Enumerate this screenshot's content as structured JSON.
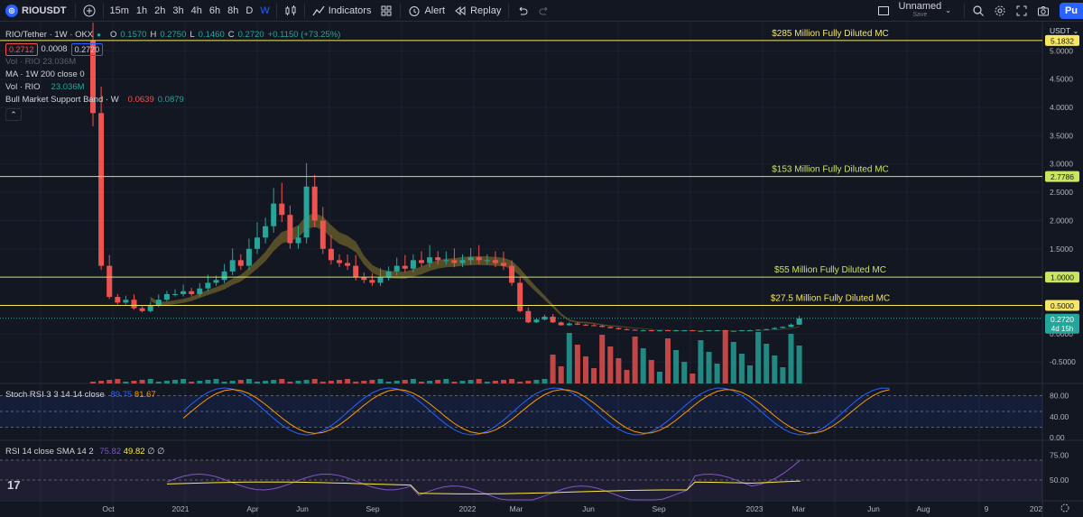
{
  "toolbar": {
    "symbol": "RIOUSDT",
    "intervals": [
      "15m",
      "1h",
      "2h",
      "3h",
      "4h",
      "6h",
      "8h",
      "D",
      "W"
    ],
    "active_interval": "W",
    "indicators_label": "Indicators",
    "alert_label": "Alert",
    "replay_label": "Replay",
    "layout_name": "Unnamed",
    "layout_status": "Save",
    "publish_label": "Pu",
    "accent": "#2962ff"
  },
  "legend": {
    "title": "RIO/Tether · 1W · OKX",
    "ohlc": {
      "o_label": "O",
      "o": "0.1570",
      "h_label": "H",
      "h": "0.2750",
      "l_label": "L",
      "l": "0.1460",
      "c_label": "C",
      "c": "0.2720",
      "chg": "+0.1150 (+73.25%)"
    },
    "bid": "0.2712",
    "spread": "0.0008",
    "ask": "0.2720",
    "vol_hidden": "Vol · RIO   23.036M",
    "ma_label": "MA · 1W  200 close 0",
    "vol_label": "Vol · RIO",
    "vol_value": "23.036M",
    "bmsb_label": "Bull Market Support Band · W",
    "bmsb_v1": "0.0639",
    "bmsb_v2": "0.0879",
    "collapse_icon": "chevron-up"
  },
  "price_axis": {
    "currency": "USDT",
    "ticks": [
      "5.0000",
      "4.5000",
      "4.0000",
      "3.5000",
      "3.0000",
      "2.5000",
      "2.0000",
      "1.5000",
      "0.5000",
      "0.0000",
      "-0.5000"
    ],
    "last_price": "0.2720",
    "countdown": "4d 15h"
  },
  "levels": [
    {
      "label": "$285 Million Fully Diluted MC",
      "price": 5.1832,
      "tag": "5.1832",
      "color": "#f5e663"
    },
    {
      "label": "$153 Million Fully Diluted MC",
      "price": 2.7786,
      "tag": "2.7786",
      "color": "#c8e65f"
    },
    {
      "label": "$55 Million Fully Diluted MC",
      "price": 1.0,
      "tag": "1.0000",
      "color": "#c8e65f"
    },
    {
      "label": "$27.5 Million Fully Diluted MC",
      "price": 0.5,
      "tag": "0.5000",
      "color": "#f5e663"
    }
  ],
  "stoch": {
    "label": "Stoch RSI  3 3 14 14 close",
    "k": "89.75",
    "d": "81.67",
    "ticks": [
      "80.00",
      "40.00",
      "0.00"
    ]
  },
  "rsi": {
    "label": "RSI  14 close SMA 14 2",
    "v1": "75.82",
    "v2": "49.82",
    "v3": "∅",
    "v4": "∅",
    "ticks": [
      "75.00",
      "50.00"
    ]
  },
  "time_axis": [
    "Oct",
    "2021",
    "Apr",
    "Jun",
    "Sep",
    "2022",
    "Mar",
    "Jun",
    "Sep",
    "2023",
    "Mar",
    "Jun",
    "Aug",
    "9",
    "202"
  ],
  "watermark": "17",
  "colors": {
    "up": "#26a69a",
    "down": "#ef5350",
    "bg": "#131722"
  },
  "chart_data": {
    "type": "candlestick",
    "symbol": "RIO/Tether",
    "interval": "1W",
    "price_ylim": [
      -0.8,
      5.5
    ],
    "close_series": [
      3.9,
      1.2,
      0.65,
      0.55,
      0.6,
      0.45,
      0.4,
      0.5,
      0.6,
      0.7,
      0.7,
      0.75,
      0.7,
      0.8,
      0.9,
      0.95,
      1.1,
      1.3,
      1.2,
      1.5,
      1.7,
      1.9,
      2.3,
      2.1,
      1.6,
      1.7,
      2.6,
      2.0,
      1.5,
      1.3,
      1.25,
      1.2,
      1.0,
      0.95,
      0.9,
      1.0,
      1.1,
      1.2,
      1.15,
      1.3,
      1.25,
      1.35,
      1.3,
      1.3,
      1.25,
      1.3,
      1.35,
      1.3,
      1.3,
      1.25,
      1.2,
      0.9,
      0.4,
      0.2,
      0.25,
      0.3,
      0.2,
      0.15,
      0.18,
      0.16,
      0.15,
      0.14,
      0.12,
      0.1,
      0.08,
      0.07,
      0.06,
      0.06,
      0.05,
      0.06,
      0.05,
      0.06,
      0.06,
      0.05,
      0.05,
      0.06,
      0.06,
      0.05,
      0.05,
      0.06,
      0.06,
      0.07,
      0.08,
      0.1,
      0.12,
      0.16,
      0.27
    ],
    "stoch_k_last": 89.75,
    "stoch_d_last": 81.67,
    "rsi_last": 75.82,
    "rsi_sma_last": 49.82
  }
}
